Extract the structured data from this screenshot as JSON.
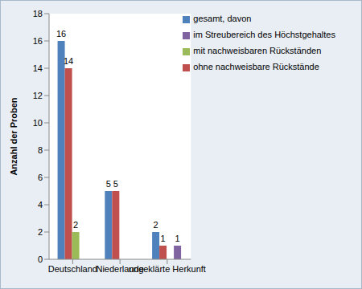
{
  "chart_data": {
    "type": "bar",
    "categories": [
      "Deutschland",
      "Niederlande",
      "ungeklärte Herkunft"
    ],
    "series": [
      {
        "name": "gesamt, davon",
        "color": "#4f81bd",
        "values": [
          16,
          5,
          2
        ]
      },
      {
        "name": "ohne nachweisbare Rückstände",
        "color": "#c0504d",
        "values": [
          14,
          5,
          1
        ]
      },
      {
        "name": "mit nachweisbaren Rückständen",
        "color": "#9bbb59",
        "values": [
          2,
          null,
          null
        ]
      },
      {
        "name": "im Streubereich des Höchstgehaltes",
        "color": "#8064a2",
        "values": [
          null,
          null,
          1
        ]
      }
    ],
    "y_label": "Anzahl der Proben",
    "ylim": [
      0,
      18
    ],
    "yticks": [
      0,
      2,
      4,
      6,
      8,
      10,
      12,
      14,
      16,
      18
    ],
    "grid": false,
    "legend": "upper right",
    "data_labels": true
  }
}
